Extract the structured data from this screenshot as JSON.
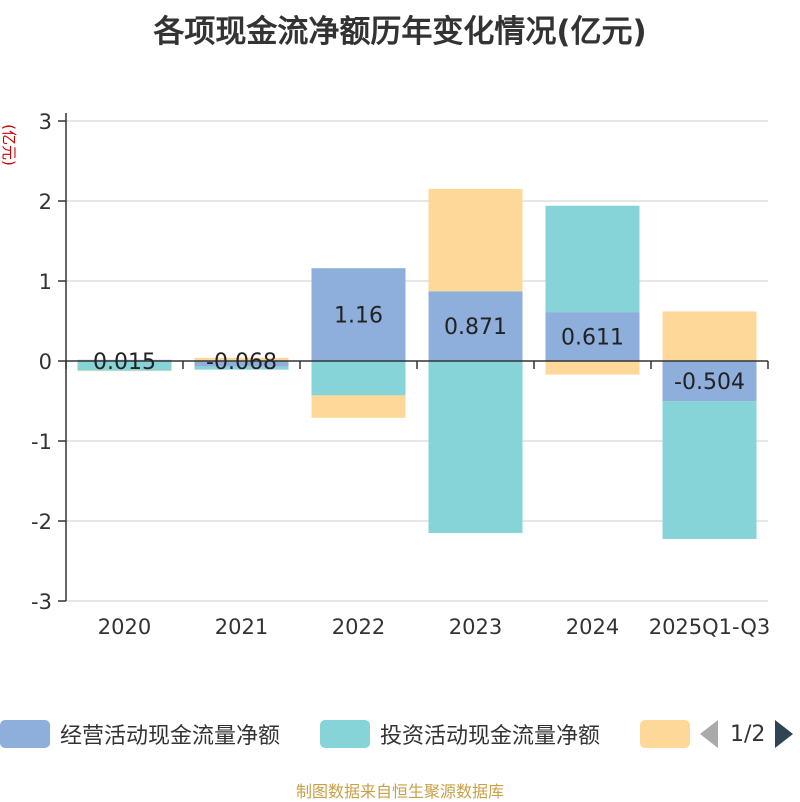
{
  "title": "各项现金流净额历年变化情况(亿元)",
  "source": "制图数据来自恒生聚源数据库",
  "legend_pager": "1/2",
  "chart_data": {
    "type": "bar",
    "stacked": true,
    "title": "各项现金流净额历年变化情况(亿元)",
    "ylabel": "(亿元)",
    "xlabel": "",
    "ylim": [
      -3,
      3
    ],
    "yticks": [
      -3,
      -2,
      -1,
      0,
      1,
      2,
      3
    ],
    "grid": true,
    "legend_position": "bottom",
    "categories": [
      "2020",
      "2021",
      "2022",
      "2023",
      "2024",
      "2025Q1-Q3"
    ],
    "series": [
      {
        "name": "经营活动现金流量净额",
        "color": "#8eaedb",
        "values": [
          0.015,
          -0.068,
          1.16,
          0.871,
          0.611,
          -0.504
        ],
        "labels": [
          "0.015",
          "-0.068",
          "1.16",
          "0.871",
          "0.611",
          "-0.504"
        ]
      },
      {
        "name": "投资活动现金流量净额",
        "color": "#86d4d8",
        "values": [
          -0.12,
          -0.04,
          -0.43,
          -2.15,
          1.33,
          -1.72
        ]
      },
      {
        "name": "",
        "color": "#fed898",
        "values": [
          -0.005,
          0.04,
          -0.28,
          1.28,
          -0.17,
          0.62
        ]
      }
    ]
  }
}
